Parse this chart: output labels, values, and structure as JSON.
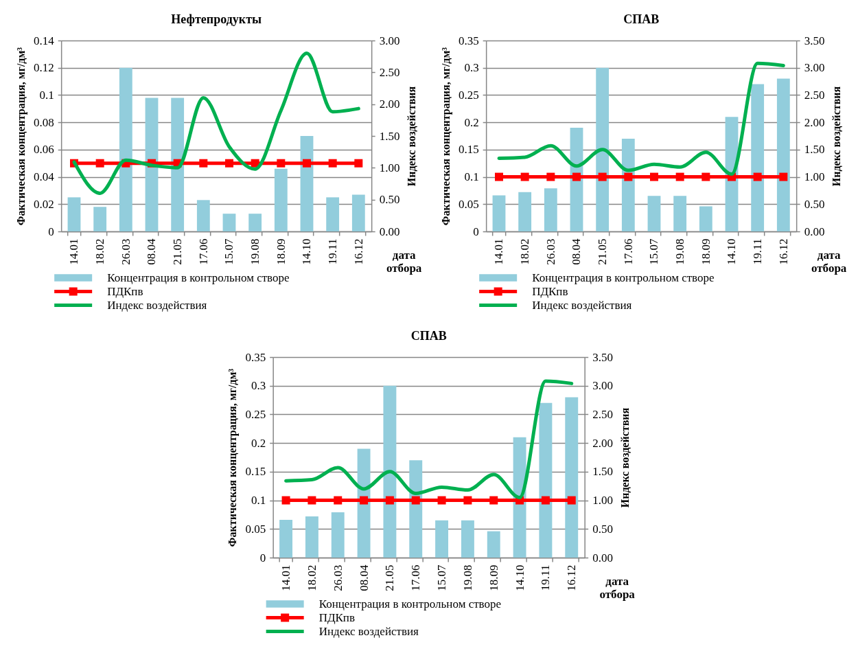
{
  "chart_data": [
    {
      "type": "bar",
      "title": "Нефтепродукты",
      "xlabel": "дата отбора",
      "ylabel": "Фактическая концентрация, мг/дм³",
      "y2label": "Индекс воздействия",
      "categories": [
        "14.01",
        "18.02",
        "26.03",
        "08.04",
        "21.05",
        "17.06",
        "15.07",
        "19.08",
        "18.09",
        "14.10",
        "19.11",
        "16.12"
      ],
      "series": [
        {
          "name": "Концентрация в контрольном створе",
          "color": "#92cddc",
          "values": [
            0.025,
            0.018,
            0.12,
            0.098,
            0.098,
            0.023,
            0.013,
            0.013,
            0.046,
            0.07,
            0.025,
            0.027
          ]
        },
        {
          "name": "ПДКпв",
          "type": "line",
          "color": "#ff0000",
          "marker": "square",
          "values": [
            0.05,
            0.05,
            0.05,
            0.05,
            0.05,
            0.05,
            0.05,
            0.05,
            0.05,
            0.05,
            0.05,
            0.05
          ]
        },
        {
          "name": "Индекс воздействия",
          "type": "line",
          "color": "#00b050",
          "axis": "y2",
          "values": [
            1.09,
            0.6,
            1.12,
            1.04,
            1.0,
            2.1,
            1.33,
            0.98,
            1.9,
            2.8,
            1.88,
            1.93
          ]
        }
      ],
      "ylim": [
        0,
        0.14
      ],
      "yticks": [
        0,
        0.02,
        0.04,
        0.06,
        0.08,
        0.1,
        0.12,
        0.14
      ],
      "y2lim": [
        0,
        3
      ],
      "y2ticks": [
        {
          "value": 0,
          "label": "0.00"
        },
        {
          "value": 0.5,
          "label": "0.50"
        },
        {
          "value": 1,
          "label": "1.00"
        },
        {
          "value": 1.5,
          "label": "1.50"
        },
        {
          "value": 2,
          "label": "2.00"
        },
        {
          "value": 2.5,
          "label": "2.50"
        },
        {
          "value": 3,
          "label": "3.00"
        }
      ],
      "grid": "y",
      "legend": "bottom"
    },
    {
      "type": "bar",
      "title": "СПАВ",
      "xlabel": "дата отбора",
      "ylabel": "Фактическая концентрация, мг/дм³",
      "y2label": "Индекс воздействия",
      "categories": [
        "14.01",
        "18.02",
        "26.03",
        "08.04",
        "21.05",
        "17.06",
        "15.07",
        "19.08",
        "18.09",
        "14.10",
        "19.11",
        "16.12"
      ],
      "series": [
        {
          "name": "Концентрация в контрольном створе",
          "color": "#92cddc",
          "values": [
            0.066,
            0.072,
            0.079,
            0.19,
            0.3,
            0.17,
            0.065,
            0.065,
            0.046,
            0.21,
            0.27,
            0.28
          ]
        },
        {
          "name": "ПДКпв",
          "type": "line",
          "color": "#ff0000",
          "marker": "square",
          "values": [
            0.1,
            0.1,
            0.1,
            0.1,
            0.1,
            0.1,
            0.1,
            0.1,
            0.1,
            0.1,
            0.1,
            0.1
          ]
        },
        {
          "name": "Индекс воздействия",
          "type": "line",
          "color": "#00b050",
          "axis": "y2",
          "values": [
            1.34,
            1.36,
            1.57,
            1.2,
            1.5,
            1.12,
            1.23,
            1.18,
            1.45,
            1.05,
            3.08,
            3.04
          ]
        }
      ],
      "ylim": [
        0,
        0.35
      ],
      "yticks": [
        0,
        0.05,
        0.1,
        0.15,
        0.2,
        0.25,
        0.3,
        0.35
      ],
      "y2lim": [
        0,
        3.5
      ],
      "y2ticks": [
        {
          "value": 0,
          "label": "0.00"
        },
        {
          "value": 0.5,
          "label": "0.50"
        },
        {
          "value": 1,
          "label": "1.00"
        },
        {
          "value": 1.5,
          "label": "1.50"
        },
        {
          "value": 2,
          "label": "2.00"
        },
        {
          "value": 2.5,
          "label": "2.50"
        },
        {
          "value": 3,
          "label": "3.00"
        },
        {
          "value": 3.5,
          "label": "3.50"
        }
      ],
      "grid": "y",
      "legend": "bottom"
    },
    {
      "type": "bar",
      "title": "СПАВ",
      "xlabel": "дата отбора",
      "ylabel": "Фактическая концентрация, мг/дм³",
      "y2label": "Индекс воздействия",
      "categories": [
        "14.01",
        "18.02",
        "26.03",
        "08.04",
        "21.05",
        "17.06",
        "15.07",
        "19.08",
        "18.09",
        "14.10",
        "19.11",
        "16.12"
      ],
      "series": [
        {
          "name": "Концентрация в контрольном створе",
          "color": "#92cddc",
          "values": [
            0.066,
            0.072,
            0.079,
            0.19,
            0.3,
            0.17,
            0.065,
            0.065,
            0.046,
            0.21,
            0.27,
            0.28
          ]
        },
        {
          "name": "ПДКпв",
          "type": "line",
          "color": "#ff0000",
          "marker": "square",
          "values": [
            0.1,
            0.1,
            0.1,
            0.1,
            0.1,
            0.1,
            0.1,
            0.1,
            0.1,
            0.1,
            0.1,
            0.1
          ]
        },
        {
          "name": "Индекс воздействия",
          "type": "line",
          "color": "#00b050",
          "axis": "y2",
          "values": [
            1.34,
            1.36,
            1.57,
            1.2,
            1.5,
            1.12,
            1.23,
            1.18,
            1.45,
            1.05,
            3.08,
            3.04
          ]
        }
      ],
      "ylim": [
        0,
        0.35
      ],
      "yticks": [
        0,
        0.05,
        0.1,
        0.15,
        0.2,
        0.25,
        0.3,
        0.35
      ],
      "y2lim": [
        0,
        3.5
      ],
      "y2ticks": [
        {
          "value": 0,
          "label": "0.00"
        },
        {
          "value": 0.5,
          "label": "0.50"
        },
        {
          "value": 1,
          "label": "1.00"
        },
        {
          "value": 1.5,
          "label": "1.50"
        },
        {
          "value": 2,
          "label": "2.00"
        },
        {
          "value": 2.5,
          "label": "2.50"
        },
        {
          "value": 3,
          "label": "3.00"
        },
        {
          "value": 3.5,
          "label": "3.50"
        }
      ],
      "grid": "y",
      "legend": "bottom"
    }
  ]
}
